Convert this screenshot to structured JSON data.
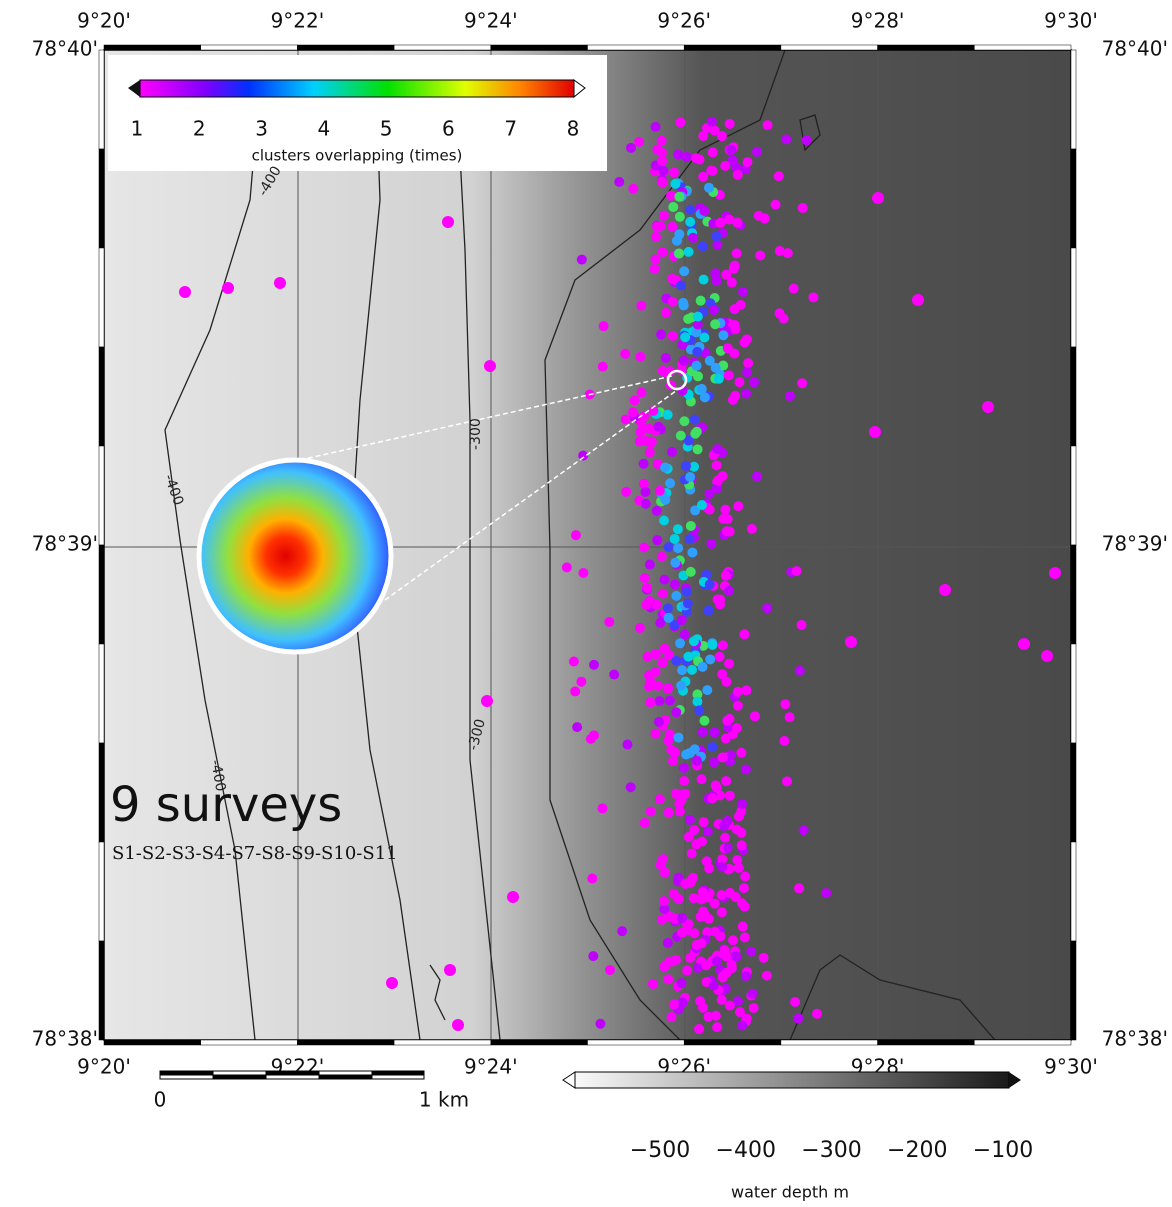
{
  "map": {
    "top_labels": [
      "9°20'",
      "9°22'",
      "9°24'",
      "9°26'",
      "9°28'",
      "9°30'"
    ],
    "bottom_labels": [
      "9°20'",
      "9°22'",
      "9°24'",
      "9°26'",
      "9°28'",
      "9°30'"
    ],
    "left_labels": [
      "78°40'",
      "78°39'",
      "78°38'"
    ],
    "right_labels": [
      "78°40'",
      "78°39'",
      "78°38'"
    ],
    "contour_labels": [
      "-400",
      "-400",
      "-400",
      "-300",
      "-300"
    ],
    "cluster_legend": {
      "ticks": [
        "1",
        "2",
        "3",
        "4",
        "5",
        "6",
        "7",
        "8"
      ],
      "title": "clusters overlapping (times)"
    },
    "survey": {
      "title": "9 surveys",
      "list": "S1-S2-S3-S4-S7-S8-S9-S10-S11"
    },
    "scale_bar": {
      "start": "0",
      "end": "1 km"
    },
    "depth_legend": {
      "ticks": [
        "−500",
        "−400",
        "−300",
        "−200",
        "−100"
      ],
      "title": "water depth m"
    }
  }
}
